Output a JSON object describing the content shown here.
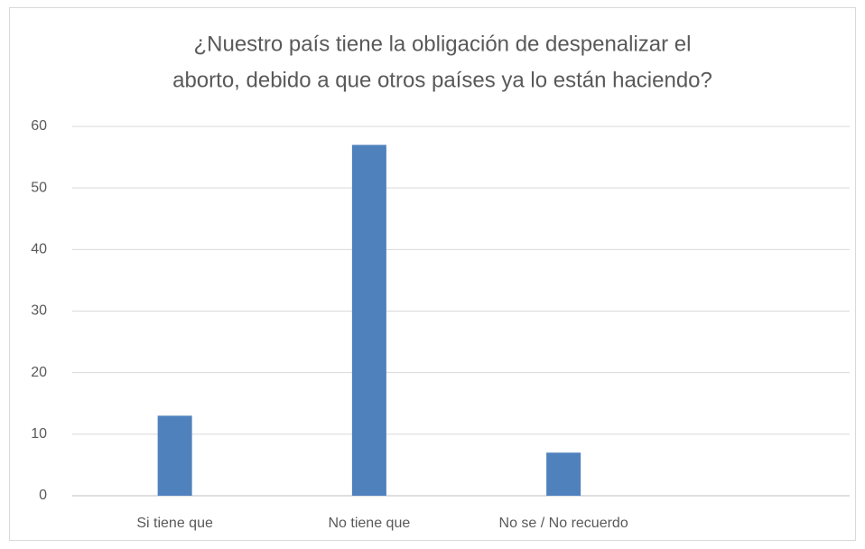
{
  "chart_data": {
    "type": "bar",
    "title": [
      "¿Nuestro país tiene la obligación de despenalizar el",
      "aborto, debido a que otros países ya lo están haciendo?"
    ],
    "categories": [
      "Si tiene que",
      "No tiene que",
      "No se / No recuerdo",
      null
    ],
    "values": [
      13,
      57,
      7,
      null
    ],
    "color": "#4f81bd",
    "ylim": [
      0,
      60
    ],
    "yticks": [
      0,
      10,
      20,
      30,
      40,
      50,
      60
    ],
    "grid": true
  }
}
